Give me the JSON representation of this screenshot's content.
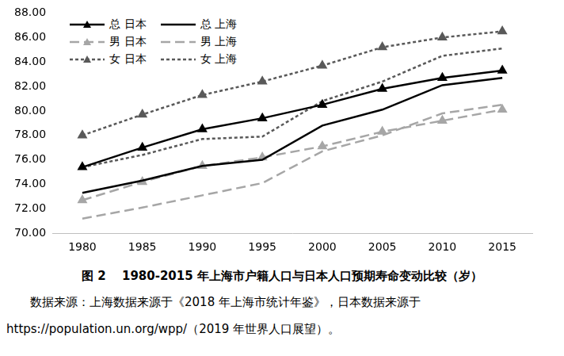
{
  "chart_data": {
    "type": "line",
    "title": "图 2　 1980-2015 年上海市户籍人口与日本人口预期寿命变动比较（岁）",
    "note": "数据来源：上海数据来源于《2018 年上海市统计年鉴》，日本数据来源于 https://population.un.org/wpp/（2019 年世界人口展望）。",
    "categories": [
      "1980",
      "1985",
      "1990",
      "1995",
      "2000",
      "2005",
      "2010",
      "2015"
    ],
    "series": [
      {
        "name": "总 日本",
        "color": "#000000",
        "marker": "triangle",
        "line_style": "solid",
        "values": [
          75.4,
          77.0,
          78.5,
          79.4,
          80.5,
          81.8,
          82.7,
          83.3
        ]
      },
      {
        "name": "总 上海",
        "color": "#000000",
        "marker": "none",
        "line_style": "solid",
        "values": [
          73.3,
          74.3,
          75.5,
          76.0,
          78.8,
          80.1,
          82.1,
          82.7
        ]
      },
      {
        "name": "男 日本",
        "color": "#a6a6a6",
        "marker": "triangle",
        "line_style": "dashed",
        "values": [
          72.7,
          74.2,
          75.5,
          76.2,
          77.1,
          78.3,
          79.2,
          80.1
        ]
      },
      {
        "name": "男 上海",
        "color": "#a6a6a6",
        "marker": "none",
        "line_style": "dashed",
        "values": [
          71.2,
          72.1,
          73.1,
          74.1,
          76.7,
          78.0,
          79.8,
          80.5
        ]
      },
      {
        "name": "女 日本",
        "color": "#595959",
        "marker": "triangle",
        "line_style": "dotted",
        "values": [
          78.0,
          79.7,
          81.3,
          82.4,
          83.7,
          85.2,
          86.0,
          86.5
        ]
      },
      {
        "name": "女 上海",
        "color": "#595959",
        "marker": "none",
        "line_style": "dotted",
        "values": [
          75.4,
          76.4,
          77.7,
          77.9,
          80.8,
          82.4,
          84.5,
          85.1
        ]
      }
    ],
    "ylim": [
      70,
      88
    ],
    "yticks": [
      {
        "value": 70,
        "label": "70.00"
      },
      {
        "value": 72,
        "label": "72.00"
      },
      {
        "value": 74,
        "label": "74.00"
      },
      {
        "value": 76,
        "label": "76.00"
      },
      {
        "value": 78,
        "label": "78.00"
      },
      {
        "value": 80,
        "label": "80.00"
      },
      {
        "value": 82,
        "label": "82.00"
      },
      {
        "value": 84,
        "label": "84.00"
      },
      {
        "value": 86,
        "label": "86.00"
      },
      {
        "value": 88,
        "label": "88.00"
      }
    ],
    "grid": false,
    "legend": "upper left"
  }
}
